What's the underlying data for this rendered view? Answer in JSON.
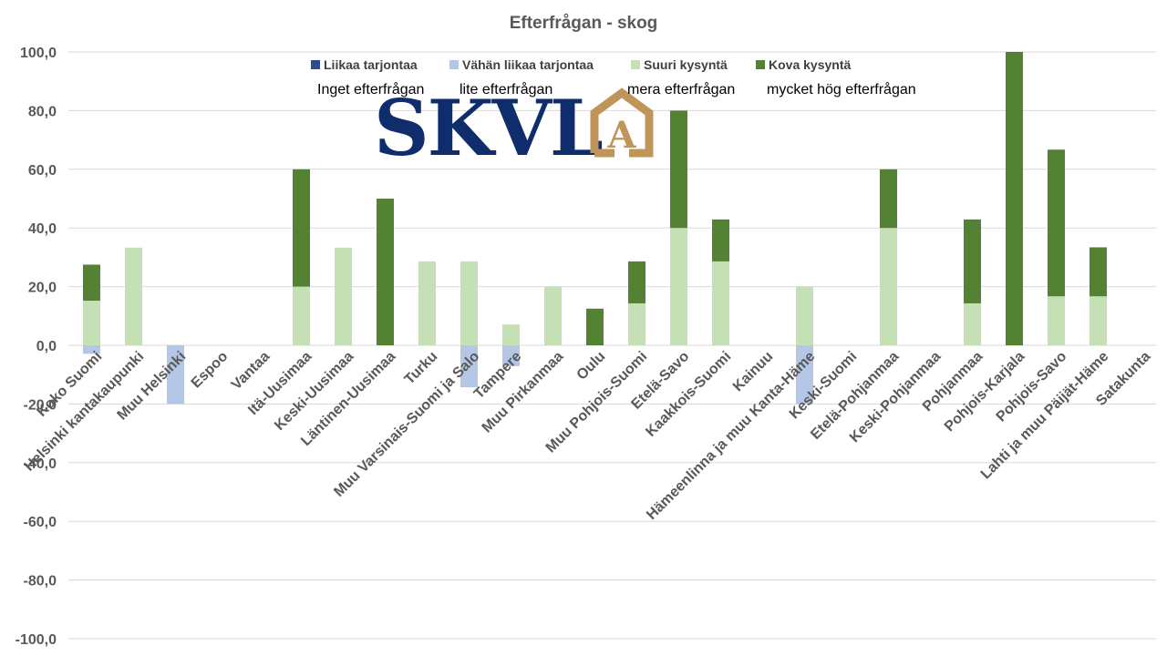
{
  "chart_data": {
    "type": "bar",
    "stacked": true,
    "title": "Efterfrågan - skog",
    "ylim": [
      -100,
      100
    ],
    "ytick_step": 20,
    "ytick_labels": [
      "100,0",
      "80,0",
      "60,0",
      "40,0",
      "20,0",
      "0,0",
      "-20,0",
      "-40,0",
      "-60,0",
      "-80,0",
      "-100,0"
    ],
    "grid": true,
    "legend_position": "top-center",
    "categories": [
      "Koko Suomi",
      "Helsinki kantakaupunki",
      "Muu Helsinki",
      "Espoo",
      "Vantaa",
      "Itä-Uusimaa",
      "Keski-Uusimaa",
      "Läntinen-Uusimaa",
      "Turku",
      "Muu Varsinais-Suomi ja Salo",
      "Tampere",
      "Muu Pirkanmaa",
      "Oulu",
      "Muu Pohjois-Suomi",
      "Etelä-Savo",
      "Kaakkois-Suomi",
      "Kainuu",
      "Hämeenlinna ja muu Kanta-Häme",
      "Keski-Suomi",
      "Etelä-Pohjanmaa",
      "Keski-Pohjanmaa",
      "Pohjanmaa",
      "Pohjois-Karjala",
      "Pohjois-Savo",
      "Lahti ja muu Päijät-Häme",
      "Satakunta"
    ],
    "series": [
      {
        "name": "Liikaa tarjontaa",
        "sublabel": "Inget efterfrågan",
        "color": "#2f4b8f",
        "values": [
          0,
          0,
          0,
          0,
          0,
          0,
          0,
          0,
          0,
          0,
          0,
          0,
          0,
          0,
          0,
          0,
          0,
          0,
          0,
          0,
          0,
          0,
          0,
          0,
          0,
          0
        ]
      },
      {
        "name": "Vähän liikaa tarjontaa",
        "sublabel": "lite efterfrågan",
        "color": "#b4c7e7",
        "values": [
          -2.9,
          0,
          -20,
          0,
          0,
          0,
          0,
          0,
          0,
          -14.3,
          -7.1,
          0,
          0,
          0,
          0,
          0,
          0,
          -20,
          0,
          0,
          0,
          0,
          0,
          0,
          0,
          0
        ]
      },
      {
        "name": "Suuri kysyntä",
        "sublabel": "mera efterfrågan",
        "color": "#c5e0b4",
        "values": [
          15.2,
          33.3,
          0,
          0,
          0,
          20,
          33.3,
          0,
          28.6,
          28.6,
          7.1,
          20,
          0,
          14.3,
          40,
          28.6,
          0,
          20,
          0,
          40,
          0,
          14.3,
          0,
          16.7,
          16.7,
          0
        ]
      },
      {
        "name": "Kova kysyntä",
        "sublabel": "mycket hög efterfrågan",
        "color": "#548235",
        "values": [
          12.3,
          0,
          0,
          0,
          0,
          40,
          0,
          50,
          0,
          0,
          0,
          0,
          12.5,
          14.3,
          40,
          14.3,
          0,
          0,
          0,
          20,
          0,
          28.6,
          100,
          50,
          16.7,
          0
        ]
      }
    ]
  },
  "logo": {
    "text": "SKVL",
    "letter": "A",
    "text_color": "#0f2c6c",
    "house_color": "#c0955a"
  },
  "colors": {
    "grid": "#d9d9d9",
    "axis_text": "#595959"
  }
}
